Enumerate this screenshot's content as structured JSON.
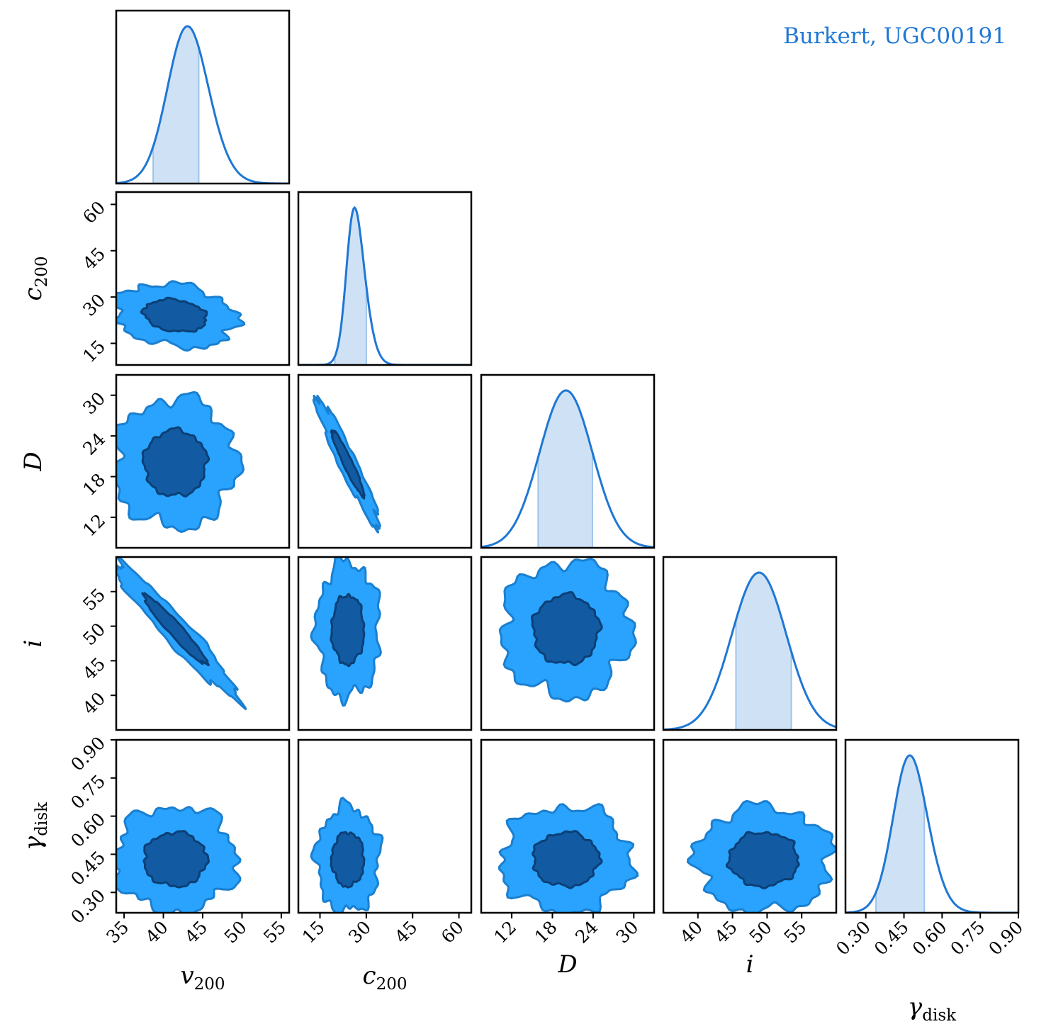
{
  "chart_data": {
    "type": "corner",
    "label": "Burkert, UGC00191",
    "legend_placement": "top-right",
    "colors": {
      "line": "#1f77d4",
      "band": "#cfe2f5",
      "contour_outer": "#29a3fd",
      "contour_outer_edge": "#1a7fd0",
      "contour_inner": "#125ba3",
      "contour_inner_edge": "#0b3f75"
    },
    "parameters": [
      {
        "name": "v200",
        "label_main": "v",
        "label_sub": "200",
        "range": [
          34,
          56
        ],
        "ticks": [
          35,
          40,
          45,
          50,
          55
        ],
        "tick_labels": [
          "35",
          "40",
          "45",
          "50",
          "55"
        ],
        "mean": 41.5,
        "sd": 3.2,
        "ci68": [
          38.7,
          44.5
        ],
        "skew": 0.9
      },
      {
        "name": "c200",
        "label_main": "c",
        "label_sub": "200",
        "range": [
          8,
          64
        ],
        "ticks": [
          15,
          30,
          45,
          60
        ],
        "tick_labels": [
          "15",
          "30",
          "45",
          "60"
        ],
        "mean": 24.0,
        "sd": 4.2,
        "ci68": [
          19.8,
          30.0
        ],
        "skew": 1.6
      },
      {
        "name": "D",
        "label_main": "D",
        "label_sub": "",
        "range": [
          7.5,
          33
        ],
        "ticks": [
          12,
          18,
          24,
          30
        ],
        "tick_labels": [
          "12",
          "18",
          "24",
          "30"
        ],
        "mean": 20.0,
        "sd": 3.9,
        "ci68": [
          15.9,
          23.9
        ],
        "skew": 0.0
      },
      {
        "name": "i",
        "label_main": "i",
        "label_sub": "",
        "range": [
          35,
          60
        ],
        "ticks": [
          40,
          45,
          50,
          55
        ],
        "tick_labels": [
          "40",
          "45",
          "50",
          "55"
        ],
        "mean": 49.5,
        "sd": 4.0,
        "ci68": [
          45.5,
          53.5
        ],
        "skew": -0.2
      },
      {
        "name": "gamma_disk",
        "label_main": "γ",
        "label_sub": "disk",
        "range": [
          0.22,
          0.9
        ],
        "ticks": [
          0.3,
          0.45,
          0.6,
          0.75,
          0.9
        ],
        "tick_labels": [
          "0.30",
          "0.45",
          "0.60",
          "0.75",
          "0.90"
        ],
        "mean": 0.43,
        "sd": 0.085,
        "ci68": [
          0.34,
          0.53
        ],
        "skew": 1.0
      }
    ],
    "correlations": [
      [
        1.0,
        -0.2,
        0.0,
        -0.96,
        0.0
      ],
      [
        -0.2,
        1.0,
        -0.95,
        0.0,
        0.0
      ],
      [
        0.0,
        -0.95,
        1.0,
        0.0,
        0.0
      ],
      [
        -0.96,
        0.0,
        0.0,
        1.0,
        0.0
      ],
      [
        0.0,
        0.0,
        0.0,
        0.0,
        1.0
      ]
    ]
  }
}
